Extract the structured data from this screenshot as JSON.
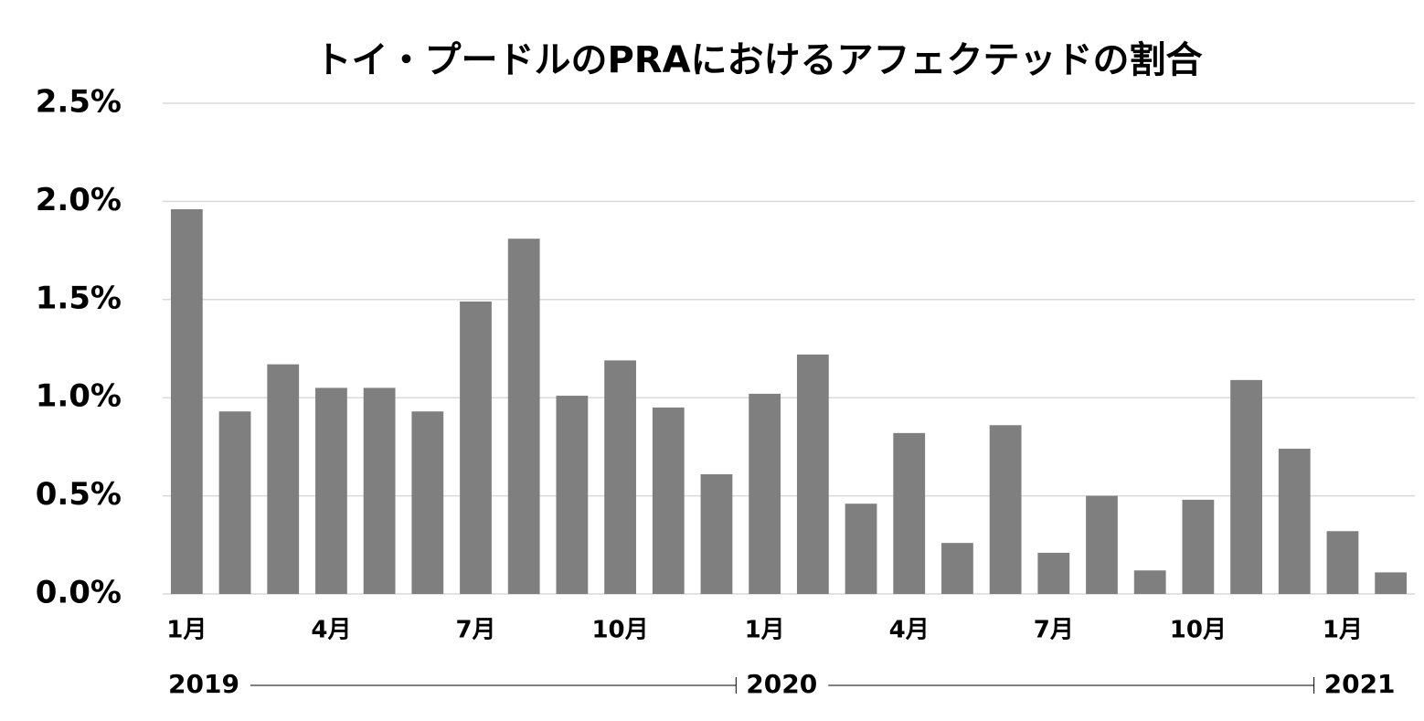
{
  "chart_data": {
    "type": "bar",
    "title": "トイ・プードルのPRAにおけるアフェクテッドの割合",
    "categories": [
      "1月",
      null,
      null,
      "4月",
      null,
      null,
      "7月",
      null,
      null,
      "10月",
      null,
      null,
      "1月",
      null,
      null,
      "4月",
      null,
      null,
      "7月",
      null,
      null,
      "10月",
      null,
      null,
      "1月",
      null
    ],
    "groups": [
      {
        "label": "2019",
        "size": 12
      },
      {
        "label": "2020",
        "size": 12
      },
      {
        "label": "2021",
        "size": 2
      }
    ],
    "values": [
      1.96,
      0.93,
      1.17,
      1.05,
      1.05,
      0.93,
      1.49,
      1.81,
      1.01,
      1.19,
      0.95,
      0.61,
      1.02,
      1.22,
      0.46,
      0.82,
      0.26,
      0.86,
      0.21,
      0.5,
      0.12,
      0.48,
      1.09,
      0.74,
      0.32,
      0.11
    ],
    "color": "#7f7f7f",
    "ylim": [
      0,
      2.5
    ],
    "yticks": [
      {
        "value": 0,
        "label": "0.0%"
      },
      {
        "value": 0.5,
        "label": "0.5%"
      },
      {
        "value": 1,
        "label": "1.0%"
      },
      {
        "value": 1.5,
        "label": "1.5%"
      },
      {
        "value": 2,
        "label": "2.0%"
      },
      {
        "value": 2.5,
        "label": "2.5%"
      }
    ],
    "grid": true
  }
}
